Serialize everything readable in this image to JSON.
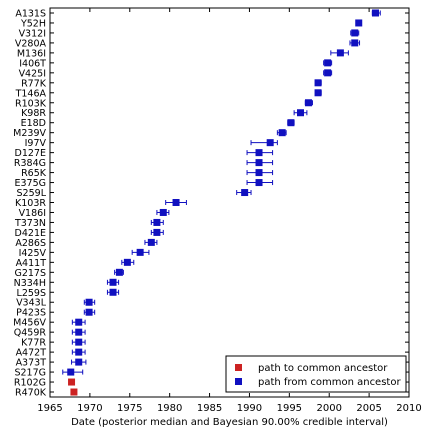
{
  "chart_data": {
    "type": "scatter",
    "title": "",
    "xlabel": "Date (posterior median and Bayesian 90.00% credible interval)",
    "ylabel": "",
    "xlim": [
      1965,
      2010
    ],
    "xticks": [
      1965,
      1970,
      1975,
      1980,
      1985,
      1990,
      1995,
      2000,
      2005,
      2010
    ],
    "legend_position": "lower-right",
    "grid": false,
    "categories": [
      "A131S",
      "Y52H",
      "V312I",
      "V280A",
      "M136I",
      "I406T",
      "V425I",
      "R77K",
      "T146A",
      "R103K",
      "K98R",
      "E18D",
      "M239V",
      "I97V",
      "D127E",
      "R384G",
      "R65K",
      "E375G",
      "S259L",
      "K103R",
      "V186I",
      "T373N",
      "D421E",
      "A286S",
      "I425V",
      "A411T",
      "G217S",
      "N334H",
      "L259S",
      "V343L",
      "P423S",
      "M456V",
      "Q459R",
      "K77R",
      "A472T",
      "A373T",
      "S217G",
      "R102G",
      "R470K"
    ],
    "series": [
      {
        "name": "path to common ancestor",
        "color": "#cc2222",
        "points": [
          {
            "label": "R102G",
            "x": 1967.7,
            "lo": 1967.4,
            "hi": 1968.0
          },
          {
            "label": "R470K",
            "x": 1968.0,
            "lo": 1967.7,
            "hi": 1968.3
          }
        ]
      },
      {
        "name": "path from common ancestor",
        "color": "#1010c0",
        "points": [
          {
            "label": "A131S",
            "x": 2005.8,
            "lo": 2005.4,
            "hi": 2006.4
          },
          {
            "label": "Y52H",
            "x": 2003.7,
            "lo": 2003.4,
            "hi": 2004.0
          },
          {
            "label": "V312I",
            "x": 2003.2,
            "lo": 2002.7,
            "hi": 2003.7
          },
          {
            "label": "V280A",
            "x": 2003.2,
            "lo": 2002.6,
            "hi": 2003.8
          },
          {
            "label": "M136I",
            "x": 2001.4,
            "lo": 2000.2,
            "hi": 2002.4
          },
          {
            "label": "I406T",
            "x": 1999.8,
            "lo": 1999.3,
            "hi": 2000.3
          },
          {
            "label": "V425I",
            "x": 1999.8,
            "lo": 1999.3,
            "hi": 2000.3
          },
          {
            "label": "R77K",
            "x": 1998.6,
            "lo": 1998.3,
            "hi": 1999.0
          },
          {
            "label": "T146A",
            "x": 1998.6,
            "lo": 1998.3,
            "hi": 1999.0
          },
          {
            "label": "R103K",
            "x": 1997.4,
            "lo": 1997.0,
            "hi": 1997.9
          },
          {
            "label": "K98R",
            "x": 1996.4,
            "lo": 1995.6,
            "hi": 1997.2
          },
          {
            "label": "E18D",
            "x": 1995.2,
            "lo": 1994.8,
            "hi": 1995.6
          },
          {
            "label": "M239V",
            "x": 1994.1,
            "lo": 1993.5,
            "hi": 1994.6
          },
          {
            "label": "I97V",
            "x": 1992.6,
            "lo": 1990.2,
            "hi": 1993.5
          },
          {
            "label": "D127E",
            "x": 1991.2,
            "lo": 1989.7,
            "hi": 1992.9
          },
          {
            "label": "R384G",
            "x": 1991.2,
            "lo": 1989.7,
            "hi": 1992.9
          },
          {
            "label": "R65K",
            "x": 1991.2,
            "lo": 1989.7,
            "hi": 1992.9
          },
          {
            "label": "E375G",
            "x": 1991.2,
            "lo": 1989.7,
            "hi": 1992.9
          },
          {
            "label": "S259L",
            "x": 1989.4,
            "lo": 1988.4,
            "hi": 1990.2
          },
          {
            "label": "K103R",
            "x": 1980.8,
            "lo": 1979.5,
            "hi": 1982.1
          },
          {
            "label": "V186I",
            "x": 1979.2,
            "lo": 1978.4,
            "hi": 1979.9
          },
          {
            "label": "T373N",
            "x": 1978.4,
            "lo": 1977.7,
            "hi": 1979.2
          },
          {
            "label": "D421E",
            "x": 1978.4,
            "lo": 1977.7,
            "hi": 1979.2
          },
          {
            "label": "A286S",
            "x": 1977.7,
            "lo": 1976.9,
            "hi": 1978.4
          },
          {
            "label": "I425V",
            "x": 1976.3,
            "lo": 1975.3,
            "hi": 1977.4
          },
          {
            "label": "A411T",
            "x": 1974.7,
            "lo": 1974.0,
            "hi": 1975.5
          },
          {
            "label": "G217S",
            "x": 1973.7,
            "lo": 1973.1,
            "hi": 1974.2
          },
          {
            "label": "N334H",
            "x": 1972.9,
            "lo": 1972.2,
            "hi": 1973.6
          },
          {
            "label": "L259S",
            "x": 1972.9,
            "lo": 1972.2,
            "hi": 1973.6
          },
          {
            "label": "V343L",
            "x": 1969.9,
            "lo": 1969.3,
            "hi": 1970.6
          },
          {
            "label": "P423S",
            "x": 1969.9,
            "lo": 1969.3,
            "hi": 1970.6
          },
          {
            "label": "M456V",
            "x": 1968.6,
            "lo": 1967.8,
            "hi": 1969.4
          },
          {
            "label": "Q459R",
            "x": 1968.6,
            "lo": 1967.8,
            "hi": 1969.4
          },
          {
            "label": "K77R",
            "x": 1968.6,
            "lo": 1967.8,
            "hi": 1969.4
          },
          {
            "label": "A472T",
            "x": 1968.6,
            "lo": 1967.8,
            "hi": 1969.4
          },
          {
            "label": "A373T",
            "x": 1968.6,
            "lo": 1967.7,
            "hi": 1969.5
          },
          {
            "label": "S217G",
            "x": 1967.6,
            "lo": 1966.6,
            "hi": 1969.1
          }
        ]
      }
    ]
  }
}
